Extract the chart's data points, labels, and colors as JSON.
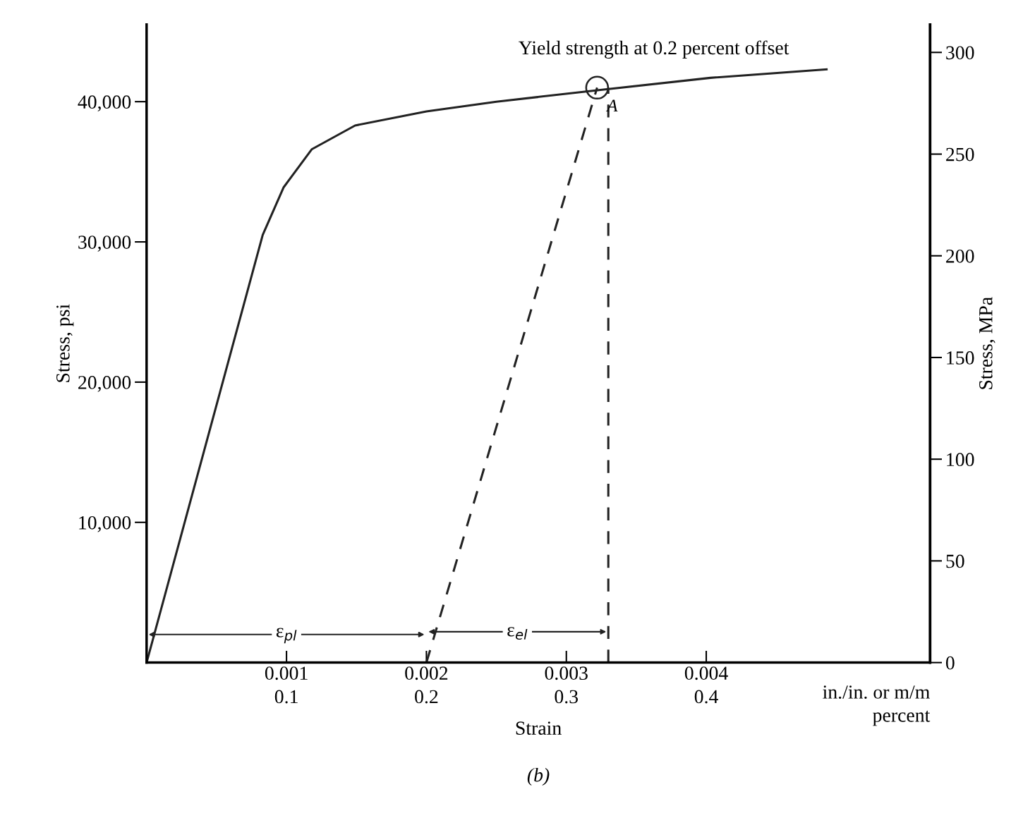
{
  "chart_data": {
    "type": "line",
    "xlabel": "Strain",
    "ylabel": "Stress, psi",
    "y2label": "Stress, MPa",
    "xlim": [
      0,
      0.0056
    ],
    "ylim": [
      0,
      45500
    ],
    "y2lim": [
      0,
      313.7
    ],
    "xticks": [
      0.001,
      0.002,
      0.003,
      0.004
    ],
    "x2lim": [
      0,
      0.56
    ],
    "x2ticks": [
      0.1,
      0.2,
      0.3,
      0.4
    ],
    "yticks": [
      {
        "value": 10000,
        "label": "10,000"
      },
      {
        "value": 20000,
        "label": "20,000"
      },
      {
        "value": 30000,
        "label": "30,000"
      },
      {
        "value": 40000,
        "label": "40,000"
      }
    ],
    "y2ticks": [
      0,
      50,
      100,
      150,
      200,
      250,
      300
    ],
    "grid": false,
    "legend": false,
    "series": [
      {
        "color": "#222222",
        "line_style": "solid",
        "x": [
          0,
          0.00083,
          0.00098,
          0.00118,
          0.00149,
          0.002,
          0.0025,
          0.00321,
          0.00403,
          0.00486
        ],
        "values": [
          0,
          30500,
          33900,
          36600,
          38300,
          39300,
          40000,
          40800,
          41700,
          42300
        ]
      },
      {
        "color": "#222222",
        "line_style": "dashed",
        "x": [
          0.002,
          0.00322
        ],
        "values": [
          0,
          41000
        ]
      },
      {
        "color": "#222222",
        "line_style": "dashed",
        "x": [
          0.0033,
          0.0033
        ],
        "values": [
          0,
          41000
        ]
      },
      {
        "type": "scatter",
        "color": "#222222",
        "marker": "circle",
        "x": [
          0.00322
        ],
        "values": [
          41000
        ]
      }
    ],
    "annotations": [
      "in./in. or m/m\npercent",
      "(b)",
      "Yield strength at 0.2 percent offset",
      {
        "text": "A",
        "x": 0.00322,
        "y": 41000
      },
      {
        "text": "ε$_{pl}$",
        "x": 0.001,
        "y": 2000
      },
      {
        "text": "ε$_{el}$",
        "x": 0.00265,
        "y": 2200
      }
    ]
  }
}
